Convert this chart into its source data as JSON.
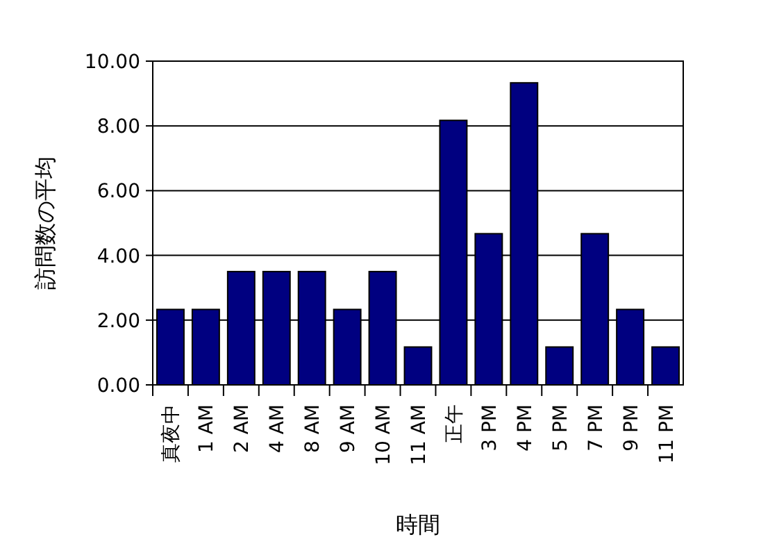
{
  "chart_data": {
    "type": "bar",
    "xlabel": "時間",
    "ylabel": "訪問数の平均",
    "categories": [
      "真夜中",
      "1 AM",
      "2 AM",
      "4 AM",
      "8 AM",
      "9 AM",
      "10 AM",
      "11 AM",
      "正午",
      "3 PM",
      "4 PM",
      "5 PM",
      "7 PM",
      "9 PM",
      "11 PM"
    ],
    "values": [
      2.33,
      2.33,
      3.5,
      3.5,
      3.5,
      2.33,
      3.5,
      1.17,
      8.17,
      4.67,
      9.33,
      1.17,
      4.67,
      2.33,
      1.17
    ],
    "color": "#000080",
    "ylim": [
      0,
      10
    ],
    "yticks": [
      {
        "value": 0,
        "label": "0.00"
      },
      {
        "value": 2,
        "label": "2.00"
      },
      {
        "value": 4,
        "label": "4.00"
      },
      {
        "value": 6,
        "label": "6.00"
      },
      {
        "value": 8,
        "label": "8.00"
      },
      {
        "value": 10,
        "label": "10.00"
      }
    ],
    "grid": "y"
  }
}
